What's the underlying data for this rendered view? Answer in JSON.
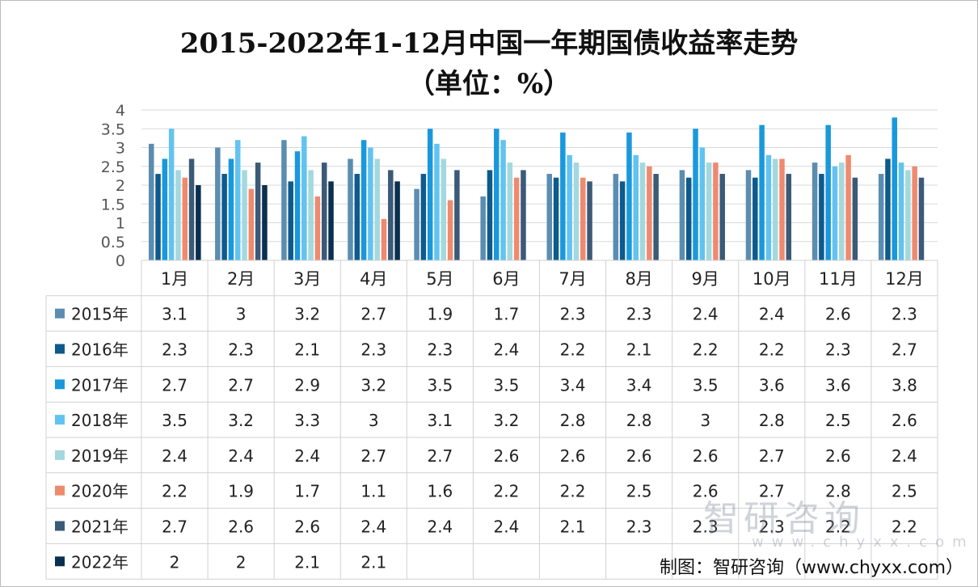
{
  "title_line1": "2015-2022年1-12月中国一年期国债收益率走势",
  "title_line2": "（单位：%）",
  "source": "制图：智研咨询（www.chyxx.com）",
  "watermark": {
    "name": "智研咨询",
    "url": "www.chyxx.com"
  },
  "chart_data": {
    "type": "bar",
    "categories": [
      "1月",
      "2月",
      "3月",
      "4月",
      "5月",
      "6月",
      "7月",
      "8月",
      "9月",
      "10月",
      "11月",
      "12月"
    ],
    "ylim": [
      0,
      4
    ],
    "yticks": [
      "0",
      "0.5",
      "1",
      "1.5",
      "2",
      "2.5",
      "3",
      "3.5",
      "4"
    ],
    "grid": true,
    "legend": "table-left",
    "series": [
      {
        "name": "2015年",
        "color": "#5b8db1",
        "values": [
          3.1,
          3,
          3.2,
          2.7,
          1.9,
          1.7,
          2.3,
          2.3,
          2.4,
          2.4,
          2.6,
          2.3
        ]
      },
      {
        "name": "2016年",
        "color": "#0f5a8c",
        "values": [
          2.3,
          2.3,
          2.1,
          2.3,
          2.3,
          2.4,
          2.2,
          2.1,
          2.2,
          2.2,
          2.3,
          2.7
        ]
      },
      {
        "name": "2017年",
        "color": "#1a98dc",
        "values": [
          2.7,
          2.7,
          2.9,
          3.2,
          3.5,
          3.5,
          3.4,
          3.4,
          3.5,
          3.6,
          3.6,
          3.8
        ]
      },
      {
        "name": "2018年",
        "color": "#62c3f0",
        "values": [
          3.5,
          3.2,
          3.3,
          3,
          3.1,
          3.2,
          2.8,
          2.8,
          3,
          2.8,
          2.5,
          2.6
        ]
      },
      {
        "name": "2019年",
        "color": "#a3d8de",
        "values": [
          2.4,
          2.4,
          2.4,
          2.7,
          2.7,
          2.6,
          2.6,
          2.6,
          2.6,
          2.7,
          2.6,
          2.4
        ]
      },
      {
        "name": "2020年",
        "color": "#ef8a6f",
        "values": [
          2.2,
          1.9,
          1.7,
          1.1,
          1.6,
          2.2,
          2.2,
          2.5,
          2.6,
          2.7,
          2.8,
          2.5
        ]
      },
      {
        "name": "2021年",
        "color": "#3b5a78",
        "values": [
          2.7,
          2.6,
          2.6,
          2.4,
          2.4,
          2.4,
          2.1,
          2.3,
          2.3,
          2.3,
          2.2,
          2.2
        ]
      },
      {
        "name": "2022年",
        "color": "#0b2f4f",
        "values": [
          2,
          2,
          2.1,
          2.1,
          null,
          null,
          null,
          null,
          null,
          null,
          null,
          null
        ]
      }
    ]
  }
}
